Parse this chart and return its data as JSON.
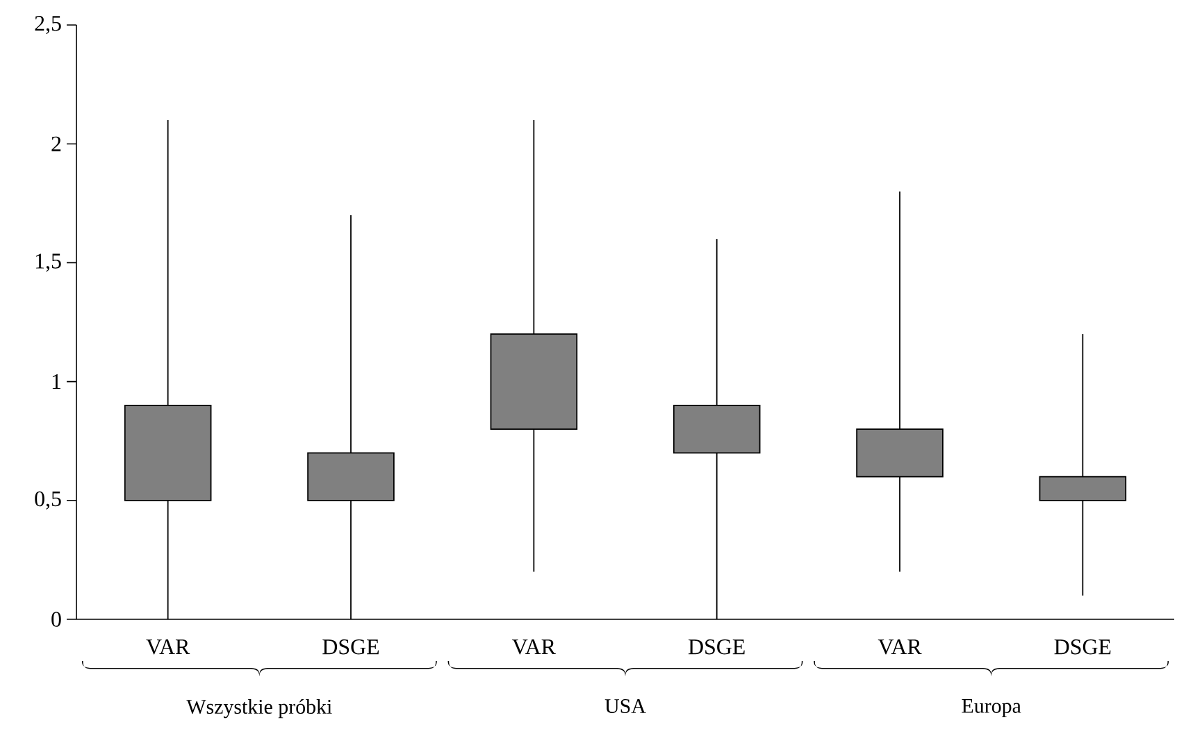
{
  "chart_data": {
    "type": "candlestick",
    "categories": [
      "VAR",
      "DSGE",
      "VAR",
      "DSGE",
      "VAR",
      "DSGE"
    ],
    "ohlc": [
      [
        0.5,
        2.1,
        0,
        0.9
      ],
      [
        0.5,
        1.7,
        0,
        0.7
      ],
      [
        0.8,
        2.1,
        0.2,
        1.2
      ],
      [
        0.7,
        1.6,
        0,
        0.9
      ],
      [
        0.6,
        1.8,
        0.2,
        0.8
      ],
      [
        0.5,
        1.2,
        0.1,
        0.6
      ]
    ],
    "color": "#808080",
    "ylim": [
      0,
      2.5
    ],
    "yticks": [
      0,
      {
        "value": 0.5,
        "label": "0,5"
      },
      1,
      {
        "value": 1.5,
        "label": "1,5"
      },
      2,
      {
        "value": 2.5,
        "label": "2,5"
      }
    ],
    "annotations": [
      "Wszystkie próbki",
      "USA",
      "Europa"
    ]
  }
}
